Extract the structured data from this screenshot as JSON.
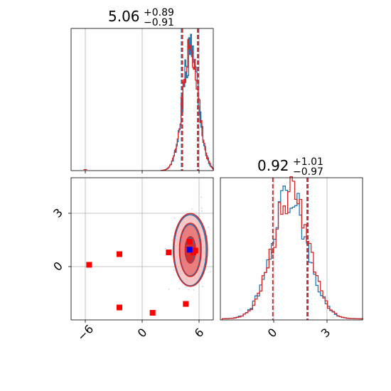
{
  "colors": {
    "blue": "#1f77b4",
    "red": "#d62728",
    "marker_red": "#ff0000",
    "marker_blue": "#0000ff",
    "grid": "#b0b0b0"
  },
  "chart_data": [
    {
      "panel": "top-left",
      "type": "histogram",
      "title": {
        "main": "5.06",
        "upper": "+0.89",
        "lower": "−0.91"
      },
      "xlim": [
        -7.5,
        7.5
      ],
      "xticks": [
        -6,
        0,
        6
      ],
      "grid": true,
      "series": [
        {
          "color": "blue",
          "peak_x": 5.1,
          "width": 0.85,
          "steps": 30
        },
        {
          "color": "red",
          "peak_x": 5.1,
          "width": 0.85,
          "steps": 30
        }
      ],
      "quantile_lines": [
        {
          "color": "blue",
          "x": 4.15
        },
        {
          "color": "red",
          "x": 4.25
        },
        {
          "color": "blue",
          "x": 5.95
        },
        {
          "color": "red",
          "x": 5.85
        }
      ]
    },
    {
      "panel": "bottom-left",
      "type": "scatter",
      "xlim": [
        -7.5,
        7.5
      ],
      "ylim": [
        -3,
        5
      ],
      "xticks": [
        -6,
        0,
        6
      ],
      "xtick_labels": [
        "−6",
        "0",
        "6"
      ],
      "yticks": [
        0,
        3
      ],
      "ytick_labels": [
        "0",
        "3"
      ],
      "grid": true,
      "contours": [
        {
          "color": "blue",
          "cx": 5.06,
          "cy": 0.92,
          "levels": [
            [
              1.7,
              2.0
            ],
            [
              1.1,
              1.45
            ],
            [
              0.5,
              0.7
            ]
          ]
        },
        {
          "color": "red",
          "cx": 5.08,
          "cy": 0.94,
          "levels": [
            [
              1.8,
              2.05
            ],
            [
              1.15,
              1.5
            ],
            [
              0.55,
              0.75
            ]
          ]
        }
      ],
      "points_red": [
        [
          -5.6,
          0.1
        ],
        [
          -2.4,
          0.7
        ],
        [
          -2.4,
          -2.3
        ],
        [
          1.1,
          -2.6
        ],
        [
          2.8,
          0.8
        ],
        [
          4.6,
          -2.1
        ],
        [
          5.0,
          1.4
        ],
        [
          5.4,
          0.8
        ],
        [
          5.6,
          0.9
        ]
      ],
      "points_blue": [
        [
          5.0,
          0.95
        ]
      ]
    },
    {
      "panel": "bottom-right",
      "type": "histogram",
      "title": {
        "main": "0.92",
        "upper": "+1.01",
        "lower": "−0.97"
      },
      "xlim": [
        -3,
        5
      ],
      "xticks": [
        0,
        3
      ],
      "xtick_labels": [
        "0",
        "3"
      ],
      "grid": true,
      "series": [
        {
          "color": "blue",
          "peak_x": 0.9,
          "width": 1.0,
          "steps": 40
        },
        {
          "color": "red",
          "peak_x": 0.95,
          "width": 1.0,
          "steps": 40
        }
      ],
      "quantile_lines": [
        {
          "color": "red",
          "x": -0.05
        },
        {
          "color": "blue",
          "x": 1.93
        },
        {
          "color": "red",
          "x": 1.88
        }
      ]
    }
  ]
}
